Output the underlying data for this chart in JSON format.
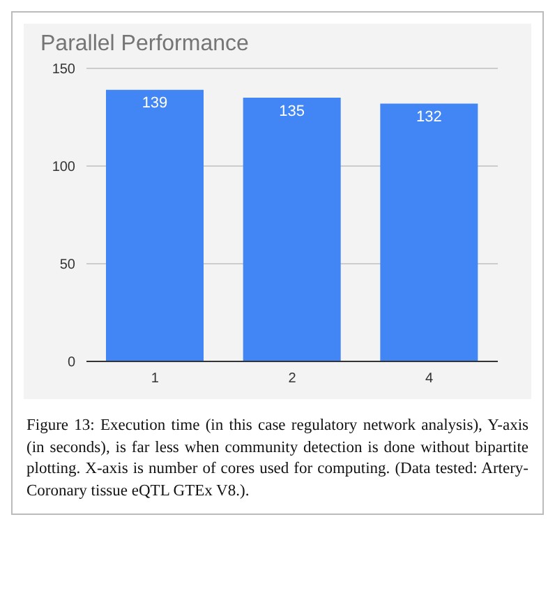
{
  "chart_data": {
    "type": "bar",
    "title": "Parallel Performance",
    "categories": [
      "1",
      "2",
      "4"
    ],
    "values": [
      139,
      135,
      132
    ],
    "color": "#4285f4",
    "ylim": [
      0,
      150
    ],
    "yticks": [
      0,
      50,
      100,
      150
    ],
    "grid": "y",
    "data_labels": true,
    "annotations": [
      "Figure 13: Execution time (in this case regulatory network analysis), Y-axis (in seconds), is far less when community detection is done without bipartite plotting. X-axis is number of cores used for computing. (Data tested: Artery-Coronary tissue eQTL GTEx V8.)."
    ]
  }
}
